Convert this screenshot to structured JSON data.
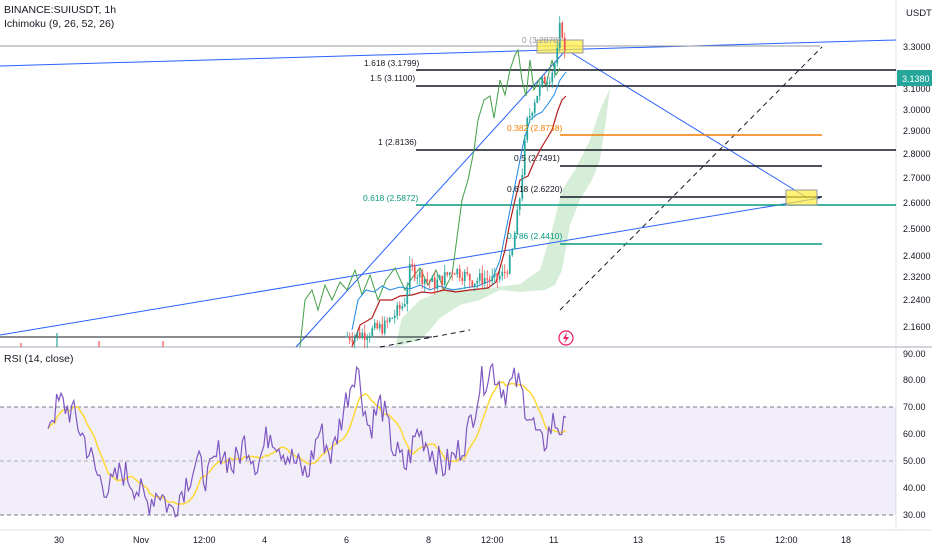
{
  "header": {
    "symbol": "BINANCE:SUIUSDT, 1h",
    "indicator": "Ichimoku (9, 26, 52, 26)",
    "currency": "USDT"
  },
  "price_badge": "3.1380",
  "price_axis_labels": [
    "3.3000",
    "3.1000",
    "3.0000",
    "2.9000",
    "2.8000",
    "2.7000",
    "2.6000",
    "2.5000",
    "2.4000",
    "2.3200",
    "2.2400",
    "2.1600"
  ],
  "rsi": {
    "title": "RSI (14, close)",
    "axis_labels": [
      "90.00",
      "80.00",
      "70.00",
      "60.00",
      "50.00",
      "40.00",
      "30.00"
    ]
  },
  "time_labels": [
    "30",
    "Nov",
    "12:00",
    "4",
    "6",
    "8",
    "12:00",
    "11",
    "13",
    "15",
    "12:00",
    "18"
  ],
  "fib_levels": [
    {
      "label": "0 (3.2878)",
      "price": 3.2878,
      "color": "#9598a1"
    },
    {
      "label": "1.618 (3.1799)",
      "price": 3.1799,
      "color": "#131722"
    },
    {
      "label": "1.5 (3.1100)",
      "price": 3.11,
      "color": "#131722"
    },
    {
      "label": "0.382 (2.8738)",
      "price": 2.8738,
      "color": "#f57c00"
    },
    {
      "label": "1 (2.8136)",
      "price": 2.8136,
      "color": "#131722"
    },
    {
      "label": "0.5 (2.7491)",
      "price": 2.7491,
      "color": "#131722"
    },
    {
      "label": "0.618 (2.6220)",
      "price": 2.622,
      "color": "#131722"
    },
    {
      "label": "0.618 (2.5872)",
      "price": 2.5872,
      "color": "#089981"
    },
    {
      "label": "0.786 (2.4410)",
      "price": 2.441,
      "color": "#089981"
    }
  ],
  "chart_data": {
    "type": "candlestick",
    "title": "BINANCE:SUIUSDT, 1h",
    "price_axis_range": [
      2.09,
      3.38
    ],
    "price_axis_scale": "log",
    "last_price": 3.138,
    "rsi_range": [
      27,
      90
    ],
    "rsi_bands": [
      70,
      50,
      30
    ],
    "price_path": [
      [
        0.0,
        2.12
      ],
      [
        1.0,
        2.13
      ],
      [
        2.0,
        2.15
      ],
      [
        3.0,
        2.22
      ],
      [
        3.3,
        2.33
      ],
      [
        4.0,
        2.3
      ],
      [
        4.5,
        2.28
      ],
      [
        5.0,
        2.3
      ],
      [
        5.5,
        2.33
      ],
      [
        6.0,
        2.31
      ],
      [
        6.5,
        2.29
      ],
      [
        7.0,
        2.3
      ],
      [
        7.5,
        2.29
      ],
      [
        8.0,
        2.31
      ],
      [
        8.4,
        2.36
      ],
      [
        8.8,
        2.55
      ],
      [
        9.2,
        2.85
      ],
      [
        9.6,
        2.95
      ],
      [
        10.0,
        3.02
      ],
      [
        10.4,
        3.05
      ],
      [
        10.7,
        3.12
      ],
      [
        10.9,
        3.29
      ],
      [
        11.1,
        3.14
      ]
    ],
    "rsi_values": [
      [
        0.0,
        65
      ],
      [
        0.5,
        72
      ],
      [
        1.0,
        68
      ],
      [
        1.5,
        58
      ],
      [
        2.0,
        45
      ],
      [
        2.5,
        40
      ],
      [
        3.0,
        47
      ],
      [
        3.5,
        42
      ],
      [
        4.0,
        35
      ],
      [
        4.5,
        40
      ],
      [
        5.0,
        32
      ],
      [
        5.5,
        41
      ],
      [
        6.0,
        50
      ],
      [
        6.5,
        44
      ],
      [
        7.0,
        55
      ],
      [
        7.5,
        48
      ],
      [
        8.0,
        58
      ],
      [
        8.5,
        49
      ],
      [
        9.0,
        62
      ],
      [
        9.5,
        55
      ],
      [
        10.0,
        50
      ],
      [
        10.5,
        45
      ],
      [
        11.0,
        62
      ],
      [
        11.5,
        52
      ],
      [
        12.0,
        70
      ],
      [
        12.5,
        86
      ],
      [
        13.0,
        62
      ],
      [
        13.5,
        72
      ],
      [
        14.0,
        55
      ],
      [
        14.5,
        48
      ],
      [
        15.0,
        62
      ],
      [
        15.5,
        55
      ],
      [
        16.0,
        48
      ],
      [
        16.5,
        52
      ],
      [
        17.0,
        60
      ],
      [
        17.5,
        78
      ],
      [
        18.0,
        85
      ],
      [
        18.5,
        76
      ],
      [
        19.0,
        80
      ],
      [
        19.5,
        68
      ],
      [
        20.0,
        55
      ],
      [
        20.5,
        65
      ],
      [
        21.0,
        61
      ]
    ]
  }
}
